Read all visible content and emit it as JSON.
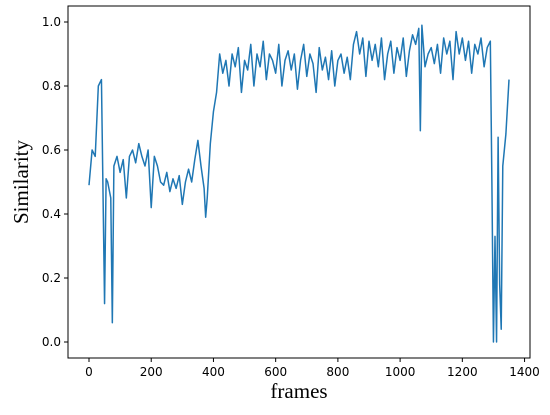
{
  "chart_data": {
    "type": "line",
    "xlabel": "frames",
    "ylabel": "Similarity",
    "color": "#1f77b4",
    "x": [
      0,
      10,
      20,
      30,
      40,
      50,
      55,
      60,
      70,
      75,
      80,
      90,
      100,
      110,
      120,
      130,
      140,
      150,
      160,
      170,
      180,
      190,
      200,
      210,
      220,
      230,
      240,
      250,
      260,
      270,
      280,
      290,
      300,
      310,
      320,
      330,
      340,
      350,
      360,
      370,
      375,
      380,
      390,
      400,
      410,
      420,
      430,
      440,
      450,
      460,
      470,
      480,
      490,
      500,
      510,
      520,
      530,
      540,
      550,
      560,
      570,
      580,
      590,
      600,
      610,
      620,
      630,
      640,
      650,
      660,
      670,
      680,
      690,
      700,
      710,
      720,
      730,
      740,
      750,
      760,
      770,
      780,
      790,
      800,
      810,
      820,
      830,
      840,
      850,
      860,
      870,
      880,
      890,
      900,
      910,
      920,
      930,
      940,
      950,
      960,
      970,
      980,
      990,
      1000,
      1010,
      1020,
      1030,
      1040,
      1050,
      1060,
      1065,
      1070,
      1080,
      1090,
      1100,
      1110,
      1120,
      1130,
      1140,
      1150,
      1160,
      1170,
      1180,
      1190,
      1200,
      1210,
      1220,
      1230,
      1240,
      1250,
      1260,
      1270,
      1280,
      1290,
      1295,
      1300,
      1305,
      1310,
      1315,
      1320,
      1325,
      1330,
      1340,
      1350
    ],
    "values": [
      0.49,
      0.6,
      0.58,
      0.8,
      0.82,
      0.12,
      0.51,
      0.5,
      0.45,
      0.06,
      0.55,
      0.58,
      0.53,
      0.57,
      0.45,
      0.58,
      0.6,
      0.56,
      0.62,
      0.58,
      0.55,
      0.6,
      0.42,
      0.58,
      0.55,
      0.5,
      0.49,
      0.53,
      0.47,
      0.51,
      0.48,
      0.52,
      0.43,
      0.5,
      0.54,
      0.5,
      0.57,
      0.63,
      0.55,
      0.48,
      0.39,
      0.45,
      0.62,
      0.72,
      0.78,
      0.9,
      0.84,
      0.88,
      0.8,
      0.9,
      0.86,
      0.92,
      0.78,
      0.88,
      0.85,
      0.93,
      0.8,
      0.9,
      0.86,
      0.94,
      0.82,
      0.9,
      0.88,
      0.84,
      0.93,
      0.8,
      0.88,
      0.91,
      0.85,
      0.9,
      0.79,
      0.88,
      0.93,
      0.83,
      0.9,
      0.87,
      0.78,
      0.92,
      0.85,
      0.89,
      0.82,
      0.91,
      0.8,
      0.88,
      0.9,
      0.84,
      0.89,
      0.82,
      0.93,
      0.97,
      0.9,
      0.95,
      0.83,
      0.94,
      0.88,
      0.93,
      0.86,
      0.95,
      0.82,
      0.9,
      0.94,
      0.84,
      0.92,
      0.88,
      0.95,
      0.83,
      0.91,
      0.96,
      0.93,
      0.98,
      0.66,
      0.99,
      0.86,
      0.9,
      0.92,
      0.87,
      0.93,
      0.84,
      0.95,
      0.9,
      0.94,
      0.82,
      0.97,
      0.9,
      0.95,
      0.88,
      0.94,
      0.84,
      0.93,
      0.9,
      0.95,
      0.86,
      0.92,
      0.94,
      0.5,
      0.0,
      0.33,
      0.0,
      0.64,
      0.18,
      0.04,
      0.55,
      0.65,
      0.82
    ],
    "xlim": [
      -67.5,
      1417.5
    ],
    "xticks": [
      0,
      200,
      400,
      600,
      800,
      1000,
      1200,
      1400
    ],
    "ylim": [
      -0.05,
      1.05
    ],
    "yticks": [
      {
        "value": 0,
        "label": "0.0"
      },
      0.2,
      0.4,
      0.6,
      0.8,
      {
        "value": 1,
        "label": "1.0"
      }
    ]
  }
}
